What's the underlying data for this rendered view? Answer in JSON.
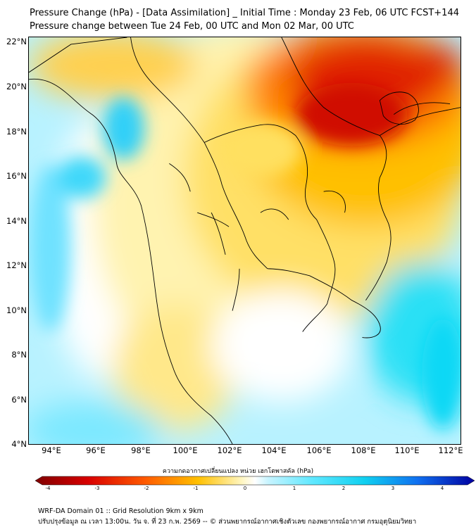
{
  "title": {
    "line1": "Pressure Change (hPa) - [Data Assimilation] _ Initial Time : Monday 23 Feb, 06 UTC FCST+144",
    "line2": "Pressure change between Tue 24 Feb, 00 UTC and Mon 02 Mar, 00 UTC"
  },
  "map": {
    "lat_ticks": [
      "22°N",
      "20°N",
      "18°N",
      "16°N",
      "14°N",
      "12°N",
      "10°N",
      "8°N",
      "6°N",
      "4°N"
    ],
    "lon_ticks": [
      "94°E",
      "96°E",
      "98°E",
      "100°E",
      "102°E",
      "104°E",
      "106°E",
      "108°E",
      "110°E",
      "112°E"
    ],
    "lat_range": [
      4,
      22.2
    ],
    "lon_range": [
      93.2,
      112.5
    ],
    "field_colors": {
      "strong_rise": "#c80000",
      "rise": "#ff7a00",
      "weak_rise": "#ffd400",
      "neutral": "#ffffff",
      "weak_fall": "#a8f0ff",
      "fall": "#33e6f5",
      "strong_fall": "#00c8f0"
    }
  },
  "colorbar": {
    "label": "ความกดอากาศเปลี่ยนแปลง หน่วย เฮกโตพาสคัล (hPa)",
    "ticks": [
      "-4",
      "-3",
      "-2",
      "-1",
      "0",
      "1",
      "2",
      "3",
      "4"
    ],
    "min": -4,
    "max": 4
  },
  "footer": {
    "line1": "WRF-DA Domain 01 :: Grid Resolution 9km x 9km",
    "line2": "ปรับปรุงข้อมูล ณ เวลา 13:00น. วัน จ. ที่ 23 ก.พ. 2569 -- © ส่วนพยากรณ์อากาศเชิงตัวเลข กองพยากรณ์อากาศ กรมอุตุนิยมวิทยา"
  }
}
